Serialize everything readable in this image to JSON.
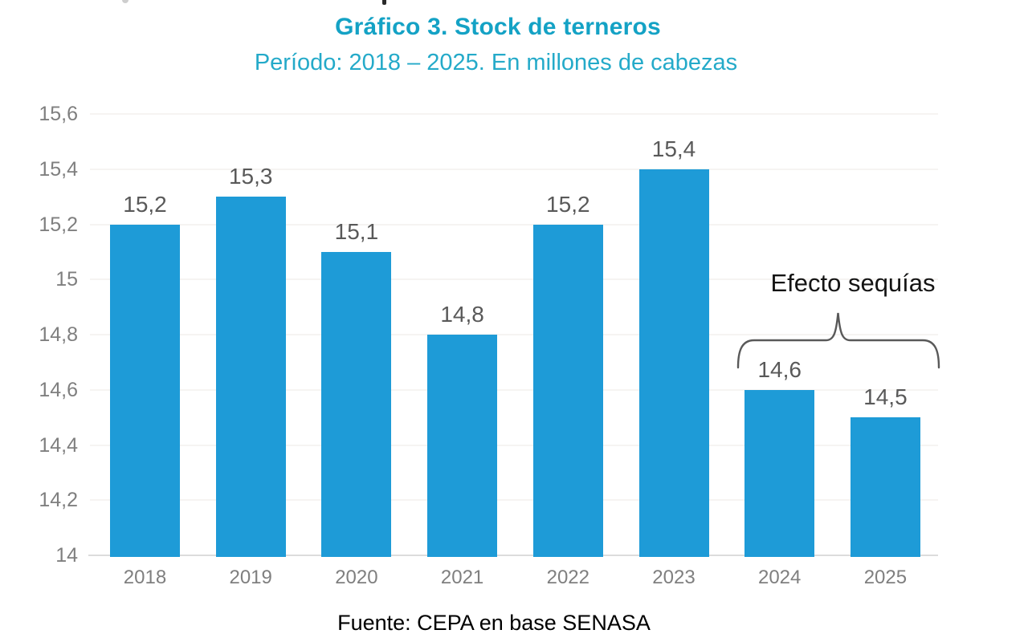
{
  "chart_data": {
    "type": "bar",
    "title": "Gráfico 3. Stock de terneros",
    "subtitle": "Período: 2018 – 2025. En millones de cabezas",
    "categories": [
      "2018",
      "2019",
      "2020",
      "2021",
      "2022",
      "2023",
      "2024",
      "2025"
    ],
    "values": [
      15.2,
      15.3,
      15.1,
      14.8,
      15.2,
      15.4,
      14.6,
      14.5
    ],
    "value_labels": [
      "15,2",
      "15,3",
      "15,1",
      "14,8",
      "15,2",
      "15,4",
      "14,6",
      "14,5"
    ],
    "xlabel": "",
    "ylabel": "",
    "ylim": [
      14,
      15.6
    ],
    "y_ticks": [
      14,
      14.2,
      14.4,
      14.6,
      14.8,
      15,
      15.2,
      15.4,
      15.6
    ],
    "y_tick_labels": [
      "14",
      "14,2",
      "14,4",
      "14,6",
      "14,8",
      "15",
      "15,2",
      "15,4",
      "15,6"
    ],
    "grid": true,
    "legend": false,
    "annotation": {
      "text": "Efecto sequías",
      "targets": [
        "2024",
        "2025"
      ]
    },
    "source": "Fuente: CEPA en base SENASA"
  },
  "colors": {
    "title": "#14A2C5",
    "subtitle": "#24AAC9",
    "bar": "#1E9BD7",
    "data_label": "#595959",
    "axis_label": "#7F7F7F",
    "grid": "#F6F4F2",
    "axis_line": "#DCDCDC",
    "annotation_text": "#141414",
    "brace": "#595959",
    "source_text": "#000000"
  }
}
